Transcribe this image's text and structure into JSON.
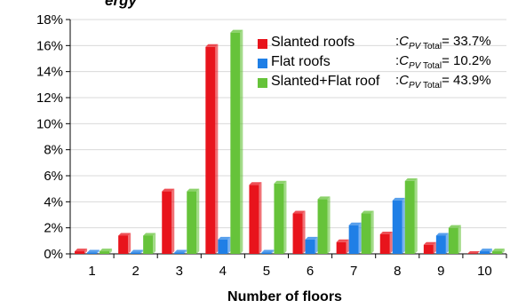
{
  "title_fragment": "ergy",
  "chart_data": {
    "type": "bar",
    "xlabel": "Number of floors",
    "ylabel": "",
    "categories": [
      "1",
      "2",
      "3",
      "4",
      "5",
      "6",
      "7",
      "8",
      "9",
      "10"
    ],
    "ylim": [
      0,
      18
    ],
    "yticks": [
      "0%",
      "2%",
      "4%",
      "6%",
      "8%",
      "10%",
      "12%",
      "14%",
      "16%",
      "18%"
    ],
    "ytick_values": [
      0,
      2,
      4,
      6,
      8,
      10,
      12,
      14,
      16,
      18
    ],
    "grid": true,
    "legend_position": "top-right",
    "series": [
      {
        "name": "Slanted roofs",
        "color": "#e8141c",
        "total_label": "C",
        "total_sub": "PV Total",
        "total_value": "= 33.7%",
        "values": [
          0.2,
          1.4,
          4.8,
          15.9,
          5.3,
          3.1,
          0.9,
          1.5,
          0.7,
          0.0
        ]
      },
      {
        "name": "Flat roofs",
        "color": "#1f7fe6",
        "total_label": "C",
        "total_sub": "PV Total",
        "total_value": "= 10.2%",
        "values": [
          0.1,
          0.1,
          0.1,
          1.1,
          0.1,
          1.1,
          2.2,
          4.1,
          1.4,
          0.2
        ]
      },
      {
        "name": "Slanted+Flat roof",
        "color": "#66c33a",
        "total_label": "C",
        "total_sub": "PV Total",
        "total_value": "= 43.9%",
        "values": [
          0.2,
          1.4,
          4.8,
          17.0,
          5.4,
          4.2,
          3.1,
          5.6,
          2.0,
          0.2
        ]
      }
    ]
  }
}
